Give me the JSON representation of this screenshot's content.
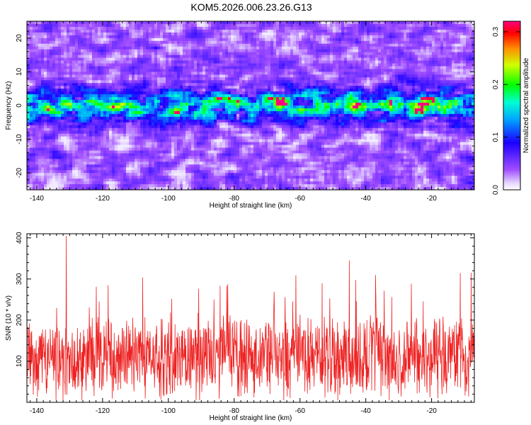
{
  "title": "KOM5.2026.006.23.26.G13",
  "chart_data": [
    {
      "type": "heatmap",
      "title": "KOM5.2026.006.23.26.G13",
      "xlabel": "Height of straight line (km)",
      "ylabel": "Frequency (Hz)",
      "xlim": [
        -143,
        -7
      ],
      "ylim": [
        -25,
        25
      ],
      "xticks": [
        -140,
        -120,
        -100,
        -80,
        -60,
        -40,
        -20
      ],
      "yticks": [
        -20,
        -10,
        0,
        10,
        20
      ],
      "colorbar": {
        "label": "Normalized spectral amplitude",
        "range": [
          0.0,
          0.32
        ],
        "ticks": [
          0.0,
          0.1,
          0.2,
          0.3
        ],
        "colormap": [
          "#ffffff",
          "#a04dff",
          "#0000ff",
          "#00ffff",
          "#00ff00",
          "#ffff00",
          "#ff0000",
          "#ff00aa"
        ]
      },
      "band": {
        "center_hz": 0,
        "half_width_hz": 8,
        "peak_amplitude": 0.32
      }
    },
    {
      "type": "line",
      "xlabel": "Height of straight line (km)",
      "ylabel": "SNR (10 * v/v)",
      "xlim": [
        -143,
        -7
      ],
      "ylim": [
        0,
        410
      ],
      "xticks": [
        -140,
        -120,
        -100,
        -80,
        -60,
        -40,
        -20
      ],
      "yticks": [
        100,
        200,
        300,
        400
      ],
      "color": "#ee2222",
      "mean": 110,
      "max": 405,
      "notable_peaks": [
        {
          "x": -131,
          "y": 405
        },
        {
          "x": -45,
          "y": 345
        },
        {
          "x": -8,
          "y": 315
        }
      ]
    }
  ]
}
